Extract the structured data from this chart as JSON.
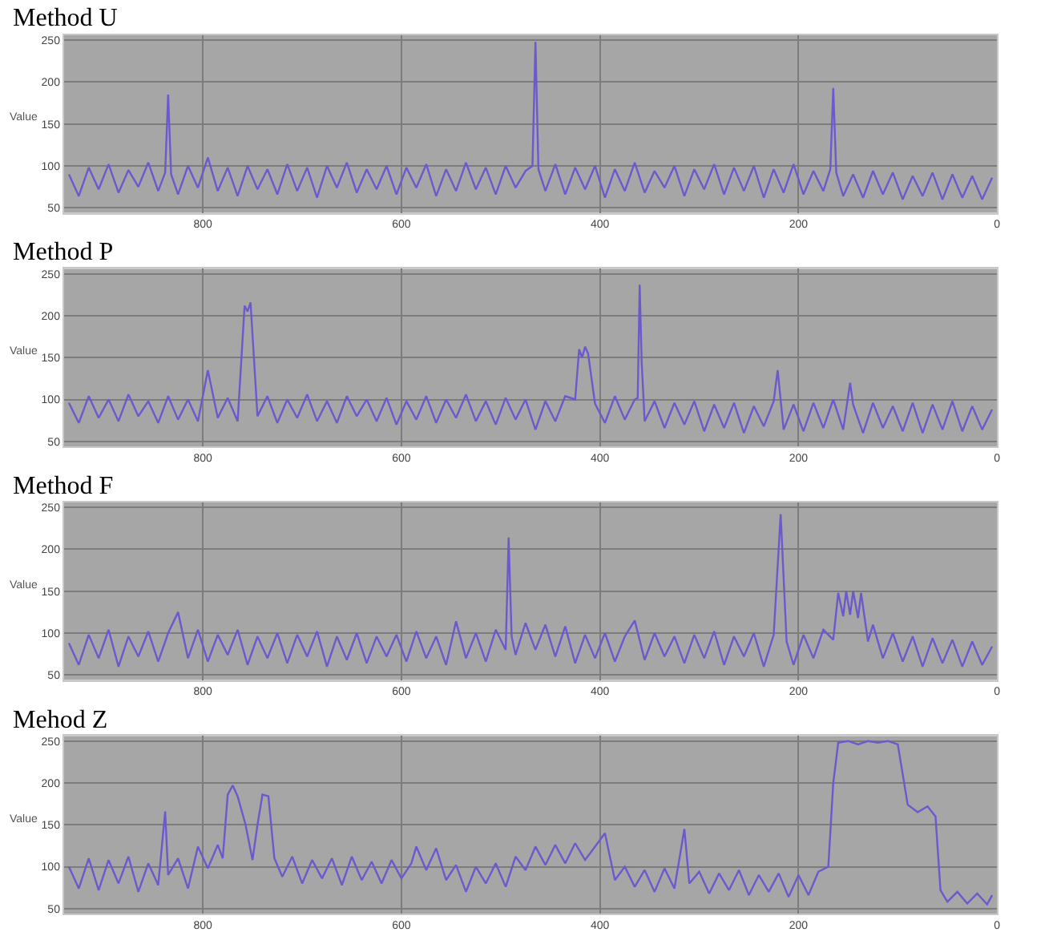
{
  "chart_data": [
    {
      "type": "line",
      "title": "Method U",
      "ylabel": "Value",
      "color": "#6a5acd",
      "grid": true,
      "xlim": [
        940,
        0
      ],
      "ylim": [
        44,
        256
      ],
      "xticks": [
        800,
        600,
        400,
        200,
        0
      ],
      "yticks": [
        50,
        100,
        150,
        200,
        250
      ],
      "x": [
        935,
        925,
        915,
        905,
        895,
        885,
        875,
        865,
        855,
        845,
        838,
        835,
        832,
        825,
        815,
        805,
        795,
        785,
        775,
        765,
        755,
        745,
        735,
        725,
        715,
        705,
        695,
        685,
        675,
        665,
        655,
        645,
        635,
        625,
        615,
        605,
        595,
        585,
        575,
        565,
        555,
        545,
        535,
        525,
        515,
        505,
        495,
        485,
        475,
        468,
        465,
        462,
        455,
        445,
        435,
        425,
        415,
        405,
        395,
        385,
        375,
        365,
        355,
        345,
        335,
        325,
        315,
        305,
        295,
        285,
        275,
        265,
        255,
        245,
        235,
        225,
        215,
        205,
        195,
        185,
        175,
        168,
        165,
        162,
        155,
        145,
        135,
        125,
        115,
        105,
        95,
        85,
        75,
        65,
        55,
        45,
        35,
        25,
        15,
        5
      ],
      "values": [
        90,
        64,
        98,
        72,
        102,
        68,
        95,
        75,
        104,
        70,
        92,
        185,
        90,
        66,
        100,
        74,
        110,
        70,
        98,
        64,
        100,
        72,
        96,
        66,
        102,
        70,
        98,
        62,
        100,
        74,
        104,
        68,
        96,
        72,
        100,
        66,
        98,
        74,
        102,
        64,
        96,
        70,
        104,
        72,
        98,
        66,
        100,
        74,
        94,
        100,
        248,
        96,
        70,
        102,
        66,
        98,
        72,
        100,
        62,
        96,
        70,
        104,
        68,
        94,
        74,
        100,
        64,
        96,
        72,
        102,
        66,
        98,
        70,
        100,
        62,
        96,
        68,
        102,
        66,
        94,
        70,
        96,
        193,
        92,
        64,
        90,
        62,
        94,
        66,
        92,
        60,
        88,
        64,
        92,
        60,
        90,
        62,
        88,
        60,
        86
      ]
    },
    {
      "type": "line",
      "title": "Method P",
      "ylabel": "Value",
      "color": "#6a5acd",
      "grid": true,
      "xlim": [
        940,
        0
      ],
      "ylim": [
        44,
        256
      ],
      "xticks": [
        800,
        600,
        400,
        200,
        0
      ],
      "yticks": [
        50,
        100,
        150,
        200,
        250
      ],
      "x": [
        935,
        925,
        915,
        905,
        895,
        885,
        875,
        865,
        855,
        845,
        835,
        825,
        815,
        805,
        795,
        785,
        775,
        765,
        758,
        755,
        752,
        745,
        735,
        725,
        715,
        705,
        695,
        685,
        675,
        665,
        655,
        645,
        635,
        625,
        615,
        605,
        595,
        585,
        575,
        565,
        555,
        545,
        535,
        525,
        515,
        505,
        495,
        485,
        475,
        465,
        455,
        445,
        435,
        425,
        421,
        418,
        415,
        412,
        405,
        395,
        385,
        375,
        365,
        362,
        360,
        358,
        355,
        345,
        335,
        325,
        315,
        305,
        295,
        285,
        275,
        265,
        255,
        245,
        235,
        225,
        221,
        215,
        205,
        195,
        185,
        175,
        165,
        155,
        148,
        145,
        135,
        125,
        115,
        105,
        95,
        85,
        75,
        65,
        55,
        45,
        35,
        25,
        15,
        5
      ],
      "values": [
        96,
        72,
        104,
        78,
        100,
        74,
        106,
        80,
        98,
        72,
        104,
        76,
        100,
        74,
        135,
        78,
        102,
        74,
        212,
        205,
        216,
        80,
        104,
        72,
        100,
        78,
        106,
        74,
        98,
        72,
        104,
        80,
        100,
        74,
        102,
        70,
        98,
        76,
        104,
        72,
        100,
        78,
        106,
        74,
        98,
        70,
        102,
        76,
        100,
        64,
        98,
        74,
        104,
        100,
        160,
        150,
        163,
        155,
        95,
        72,
        104,
        76,
        100,
        102,
        237,
        145,
        74,
        98,
        66,
        96,
        70,
        98,
        62,
        94,
        66,
        96,
        60,
        92,
        68,
        98,
        135,
        64,
        94,
        62,
        96,
        66,
        100,
        64,
        120,
        94,
        60,
        96,
        66,
        92,
        62,
        96,
        60,
        94,
        64,
        98,
        62,
        92,
        64,
        88
      ]
    },
    {
      "type": "line",
      "title": "Method F",
      "ylabel": "Value",
      "color": "#6a5acd",
      "grid": true,
      "xlim": [
        940,
        0
      ],
      "ylim": [
        44,
        256
      ],
      "xticks": [
        800,
        600,
        400,
        200,
        0
      ],
      "yticks": [
        50,
        100,
        150,
        200,
        250
      ],
      "x": [
        935,
        925,
        915,
        905,
        895,
        885,
        875,
        865,
        855,
        845,
        835,
        825,
        815,
        805,
        795,
        785,
        775,
        765,
        755,
        745,
        735,
        725,
        715,
        705,
        695,
        685,
        675,
        665,
        655,
        645,
        635,
        625,
        615,
        605,
        595,
        585,
        575,
        565,
        555,
        545,
        535,
        525,
        515,
        505,
        495,
        492,
        489,
        485,
        475,
        465,
        455,
        445,
        435,
        425,
        415,
        405,
        395,
        385,
        375,
        365,
        355,
        345,
        335,
        325,
        315,
        305,
        295,
        285,
        275,
        265,
        255,
        245,
        235,
        225,
        218,
        212,
        205,
        195,
        185,
        175,
        165,
        160,
        155,
        152,
        148,
        145,
        140,
        137,
        130,
        125,
        115,
        105,
        95,
        85,
        75,
        65,
        55,
        45,
        35,
        25,
        15,
        5
      ],
      "values": [
        88,
        62,
        98,
        70,
        104,
        60,
        96,
        72,
        102,
        66,
        100,
        125,
        70,
        104,
        66,
        98,
        74,
        104,
        62,
        96,
        70,
        100,
        64,
        98,
        72,
        102,
        60,
        96,
        68,
        100,
        64,
        96,
        72,
        98,
        66,
        102,
        70,
        96,
        62,
        114,
        70,
        100,
        66,
        104,
        80,
        214,
        96,
        74,
        112,
        80,
        110,
        72,
        108,
        64,
        98,
        70,
        100,
        66,
        96,
        115,
        68,
        100,
        72,
        96,
        64,
        98,
        70,
        102,
        62,
        96,
        72,
        100,
        60,
        98,
        242,
        90,
        62,
        98,
        70,
        104,
        92,
        148,
        120,
        150,
        122,
        150,
        118,
        148,
        90,
        110,
        70,
        100,
        66,
        96,
        60,
        94,
        64,
        92,
        60,
        90,
        62,
        84
      ]
    },
    {
      "type": "line",
      "title": "Mehod Z",
      "ylabel": "Value",
      "color": "#6a5acd",
      "grid": true,
      "xlim": [
        940,
        0
      ],
      "ylim": [
        44,
        256
      ],
      "xticks": [
        800,
        600,
        400,
        200,
        0
      ],
      "yticks": [
        50,
        100,
        150,
        200,
        250
      ],
      "x": [
        935,
        925,
        915,
        905,
        895,
        885,
        875,
        865,
        855,
        845,
        838,
        835,
        825,
        815,
        805,
        795,
        785,
        780,
        775,
        770,
        765,
        757,
        750,
        745,
        740,
        734,
        728,
        720,
        710,
        700,
        690,
        680,
        670,
        660,
        650,
        640,
        630,
        620,
        610,
        600,
        590,
        585,
        575,
        565,
        555,
        545,
        535,
        525,
        515,
        505,
        495,
        485,
        475,
        465,
        455,
        445,
        435,
        425,
        415,
        405,
        395,
        385,
        375,
        365,
        355,
        345,
        335,
        325,
        315,
        310,
        300,
        290,
        280,
        270,
        260,
        250,
        240,
        230,
        220,
        210,
        200,
        190,
        180,
        170,
        165,
        160,
        150,
        140,
        130,
        120,
        110,
        100,
        95,
        90,
        80,
        70,
        62,
        57,
        50,
        40,
        30,
        20,
        10,
        5
      ],
      "values": [
        100,
        74,
        110,
        72,
        108,
        80,
        112,
        70,
        104,
        78,
        166,
        90,
        110,
        74,
        124,
        98,
        126,
        110,
        186,
        197,
        184,
        150,
        108,
        150,
        186,
        184,
        110,
        88,
        112,
        80,
        108,
        86,
        110,
        78,
        112,
        84,
        106,
        80,
        108,
        86,
        104,
        124,
        96,
        122,
        84,
        102,
        70,
        100,
        80,
        104,
        76,
        112,
        96,
        124,
        102,
        126,
        104,
        128,
        108,
        124,
        140,
        84,
        100,
        76,
        96,
        70,
        98,
        74,
        145,
        80,
        94,
        68,
        92,
        72,
        96,
        66,
        90,
        70,
        92,
        64,
        90,
        66,
        94,
        100,
        200,
        248,
        250,
        246,
        250,
        248,
        250,
        246,
        210,
        174,
        165,
        172,
        160,
        72,
        58,
        70,
        56,
        68,
        55,
        66
      ]
    }
  ]
}
